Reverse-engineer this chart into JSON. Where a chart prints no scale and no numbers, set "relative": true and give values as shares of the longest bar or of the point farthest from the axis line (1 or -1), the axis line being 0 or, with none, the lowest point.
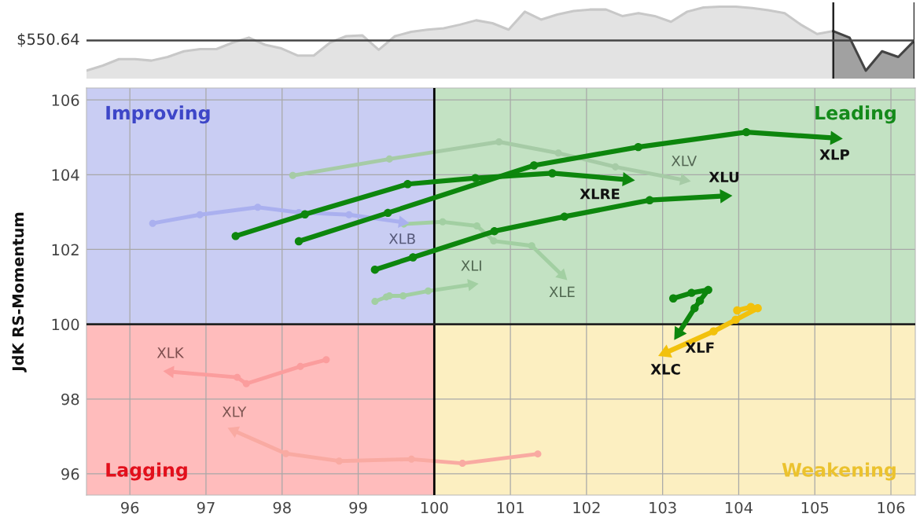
{
  "chart_data": [
    {
      "type": "area",
      "relative": true,
      "categories": [
        null,
        null,
        null,
        null,
        null,
        null,
        null,
        null,
        null,
        null,
        null,
        null,
        null,
        null,
        null,
        null,
        null,
        null,
        null,
        null,
        null,
        null,
        null,
        null,
        null,
        null,
        null,
        null,
        null,
        null,
        null,
        null,
        null,
        null,
        null,
        null,
        null,
        null,
        null,
        null,
        null,
        null,
        null,
        null,
        null,
        null,
        null,
        null,
        null,
        null,
        null,
        null
      ],
      "series": [
        {
          "color": "#c8c8c8",
          "values": [
            0.11,
            0.18,
            0.27,
            0.27,
            0.25,
            0.3,
            0.38,
            0.41,
            0.41,
            0.5,
            0.57,
            0.47,
            0.42,
            0.32,
            0.32,
            0.5,
            0.59,
            0.6,
            0.4,
            0.59,
            0.65,
            0.68,
            0.7,
            0.75,
            0.81,
            0.77,
            0.68,
            0.93,
            0.82,
            0.89,
            0.94,
            0.96,
            0.96,
            0.87,
            0.91,
            0.87,
            0.79,
            0.93,
            0.99,
            1.0,
            1.0,
            0.98,
            0.95,
            0.91,
            0.75,
            0.62,
            0.66,
            null,
            null,
            null,
            null,
            null
          ]
        },
        {
          "color": "#444444",
          "values": [
            null,
            null,
            null,
            null,
            null,
            null,
            null,
            null,
            null,
            null,
            null,
            null,
            null,
            null,
            null,
            null,
            null,
            null,
            null,
            null,
            null,
            null,
            null,
            null,
            null,
            null,
            null,
            null,
            null,
            null,
            null,
            null,
            null,
            null,
            null,
            null,
            null,
            null,
            null,
            null,
            null,
            null,
            null,
            null,
            null,
            null,
            0.66,
            0.57,
            0.11,
            0.38,
            0.3,
            0.53
          ]
        }
      ],
      "ref_lines": [
        {
          "axis": "y",
          "value": 0.53,
          "color": "#444444"
        }
      ],
      "annotations": [
        "$550.64"
      ]
    },
    {
      "type": "line",
      "ylabel": "JdK RS-Momentum",
      "xlim": [
        95.43,
        106.32
      ],
      "ylim": [
        95.43,
        106.32
      ],
      "xticks": [
        96,
        97,
        98,
        99,
        100,
        101,
        102,
        103,
        104,
        105,
        106
      ],
      "yticks": [
        96,
        98,
        100,
        102,
        104,
        106
      ],
      "grid": true,
      "marker": "circle",
      "line_style": "solid",
      "annotations": [
        "Improving",
        "Leading",
        "Lagging",
        "Weakening"
      ],
      "ref_lines": [
        {
          "axis": "x",
          "value": 100,
          "color": "#000000"
        },
        {
          "axis": "y",
          "value": 100,
          "color": "#222222"
        }
      ],
      "series": [
        {
          "name": "XLV",
          "color": "#a6cba6",
          "x": [
            98.14,
            99.41,
            100.85,
            101.63,
            102.38,
            103.28
          ],
          "values": [
            103.98,
            104.42,
            104.88,
            104.58,
            104.21,
            103.86
          ]
        },
        {
          "name": "XLB",
          "color": "#aab0ef",
          "x": [
            96.3,
            96.92,
            97.68,
            98.22,
            98.88,
            99.58
          ],
          "values": [
            102.7,
            102.93,
            103.13,
            102.99,
            102.93,
            102.73
          ]
        },
        {
          "name": "XLE",
          "color": "#a2cfa2",
          "x": [
            99.6,
            100.11,
            100.56,
            100.78,
            101.28,
            101.68
          ],
          "values": [
            102.68,
            102.74,
            102.63,
            102.23,
            102.1,
            101.31
          ]
        },
        {
          "name": "XLI",
          "color": "#a2cfa2",
          "x": [
            99.22,
            99.37,
            99.41,
            99.59,
            99.92,
            100.49
          ],
          "values": [
            100.61,
            100.73,
            100.76,
            100.76,
            100.89,
            101.06
          ]
        },
        {
          "name": "XLK",
          "color": "#fb9d9d",
          "x": [
            98.58,
            98.24,
            97.53,
            97.41,
            96.53
          ],
          "values": [
            99.05,
            98.87,
            98.41,
            98.58,
            98.73
          ]
        },
        {
          "name": "XLY",
          "color": "#f9aaa2",
          "x": [
            101.36,
            100.37,
            99.7,
            98.75,
            98.05,
            97.37
          ],
          "values": [
            96.53,
            96.28,
            96.39,
            96.34,
            96.54,
            97.15
          ]
        },
        {
          "name": "XLRE",
          "color": "#0d860d",
          "x": [
            97.39,
            98.3,
            99.65,
            100.54,
            101.55,
            102.53
          ],
          "values": [
            102.36,
            102.94,
            103.75,
            103.91,
            104.04,
            103.87
          ]
        },
        {
          "name": "XLU",
          "color": "#0d860d",
          "x": [
            99.22,
            99.72,
            100.79,
            101.71,
            102.83,
            103.81
          ],
          "values": [
            101.46,
            101.79,
            102.49,
            102.88,
            103.32,
            103.43
          ]
        },
        {
          "name": "XLP",
          "color": "#0d860d",
          "x": [
            98.22,
            99.39,
            101.31,
            102.68,
            104.1,
            105.26
          ],
          "values": [
            102.22,
            102.98,
            104.25,
            104.74,
            105.14,
            104.98
          ]
        },
        {
          "name": "XLF",
          "color": "#0d860d",
          "x": [
            103.14,
            103.38,
            103.6,
            103.49,
            103.42,
            103.21
          ],
          "values": [
            100.69,
            100.84,
            100.92,
            100.63,
            100.43,
            99.76
          ]
        },
        {
          "name": "XLC",
          "color": "#f2c10c",
          "x": [
            103.98,
            104.16,
            104.25,
            103.96,
            103.67,
            103.04
          ],
          "values": [
            100.37,
            100.46,
            100.43,
            100.12,
            99.81,
            99.24
          ]
        }
      ]
    }
  ]
}
